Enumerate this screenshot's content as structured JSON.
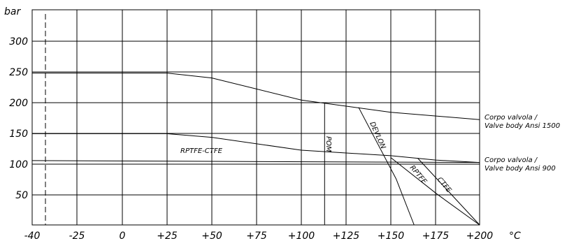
{
  "chart_data": {
    "type": "line",
    "xlabel": "°C",
    "ylabel": "bar",
    "xlim": [
      -40,
      200
    ],
    "ylim": [
      0,
      350
    ],
    "x_ticks": [
      "-40",
      "-25",
      "0",
      "+25",
      "+50",
      "+75",
      "+100",
      "+125",
      "+150",
      "+175",
      "+200"
    ],
    "y_ticks": [
      "50",
      "100",
      "150",
      "200",
      "250",
      "300"
    ],
    "grid": true,
    "series": [
      {
        "name": "Corpo valvola / Valve body Ansi 1500",
        "points": [
          [
            -40,
            248
          ],
          [
            25,
            248
          ],
          [
            50,
            240
          ],
          [
            100,
            204
          ],
          [
            150,
            184
          ],
          [
            200,
            172
          ]
        ]
      },
      {
        "name": "Corpo valvola / Valve body Ansi 900",
        "points": [
          [
            -40,
            105
          ],
          [
            200,
            102
          ]
        ]
      },
      {
        "name": "RPTFE-CTFE",
        "points": [
          [
            -40,
            149
          ],
          [
            25,
            149
          ],
          [
            50,
            143
          ],
          [
            100,
            122
          ],
          [
            150,
            113
          ],
          [
            175,
            106
          ],
          [
            200,
            102
          ]
        ]
      },
      {
        "name": "POM",
        "points": [
          [
            113,
            199
          ],
          [
            113,
            0
          ]
        ]
      },
      {
        "name": "DEVLON",
        "points": [
          [
            132,
            192
          ],
          [
            153,
            75
          ],
          [
            163,
            0
          ]
        ]
      },
      {
        "name": "RPTFE",
        "points": [
          [
            150,
            110
          ],
          [
            176,
            50
          ],
          [
            200,
            0
          ]
        ]
      },
      {
        "name": "CTFE",
        "points": [
          [
            165,
            109
          ],
          [
            200,
            0
          ]
        ]
      }
    ],
    "annotations": {
      "ansi1500_line1": "Corpo valvola /",
      "ansi1500_line2": "Valve body Ansi 1500",
      "ansi900_line1": "Corpo valvola /",
      "ansi900_line2": "Valve body Ansi 900",
      "rptfe_ctfe": "RPTFE-CTFE",
      "pom": "POM",
      "devlon": "DEVLON",
      "rptfe": "RPTFE",
      "ctfe": "CTFE"
    }
  }
}
